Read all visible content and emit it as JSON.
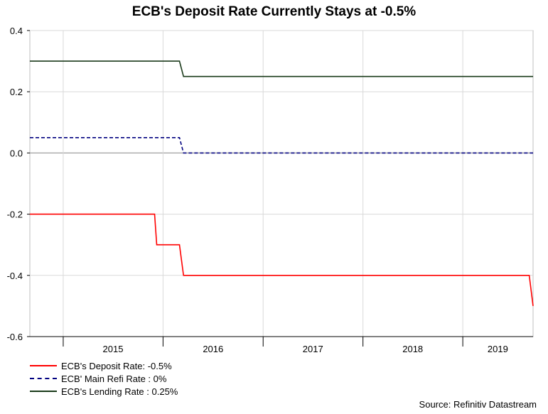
{
  "chart_data": {
    "type": "line",
    "title": "ECB's Deposit Rate Currently Stays at -0.5%",
    "xlabel": "",
    "ylabel": "",
    "ylim": [
      -0.6,
      0.4
    ],
    "yticks": [
      "0.4",
      "0.2",
      "0.0",
      "-0.2",
      "-0.4",
      "-0.6"
    ],
    "xlim": [
      "2014-09-01",
      "2019-09-15"
    ],
    "xticks": [
      "2015",
      "2016",
      "2017",
      "2018",
      "2019"
    ],
    "grid": true,
    "legend_position": "bottom-left",
    "series": [
      {
        "name": "ECB's Deposit Rate: -0.5%",
        "color": "#ff0000",
        "style": "solid",
        "points": [
          [
            "2014-09-01",
            -0.2
          ],
          [
            "2015-12-01",
            -0.2
          ],
          [
            "2015-12-09",
            -0.3
          ],
          [
            "2016-03-01",
            -0.3
          ],
          [
            "2016-03-16",
            -0.4
          ],
          [
            "2019-09-01",
            -0.4
          ],
          [
            "2019-09-18",
            -0.5
          ],
          [
            "2019-09-15",
            -0.5
          ]
        ]
      },
      {
        "name": "ECB' Main Refi Rate : 0%",
        "color": "#000080",
        "style": "dashed",
        "points": [
          [
            "2014-09-01",
            0.05
          ],
          [
            "2016-03-01",
            0.05
          ],
          [
            "2016-03-16",
            0.0
          ],
          [
            "2019-09-15",
            0.0
          ]
        ]
      },
      {
        "name": "ECB's Lending Rate : 0.25%",
        "color": "#1a3a1a",
        "style": "solid",
        "points": [
          [
            "2014-09-01",
            0.3
          ],
          [
            "2016-03-01",
            0.3
          ],
          [
            "2016-03-16",
            0.25
          ],
          [
            "2019-09-15",
            0.25
          ]
        ]
      }
    ]
  },
  "source": "Source: Refinitiv Datastream"
}
